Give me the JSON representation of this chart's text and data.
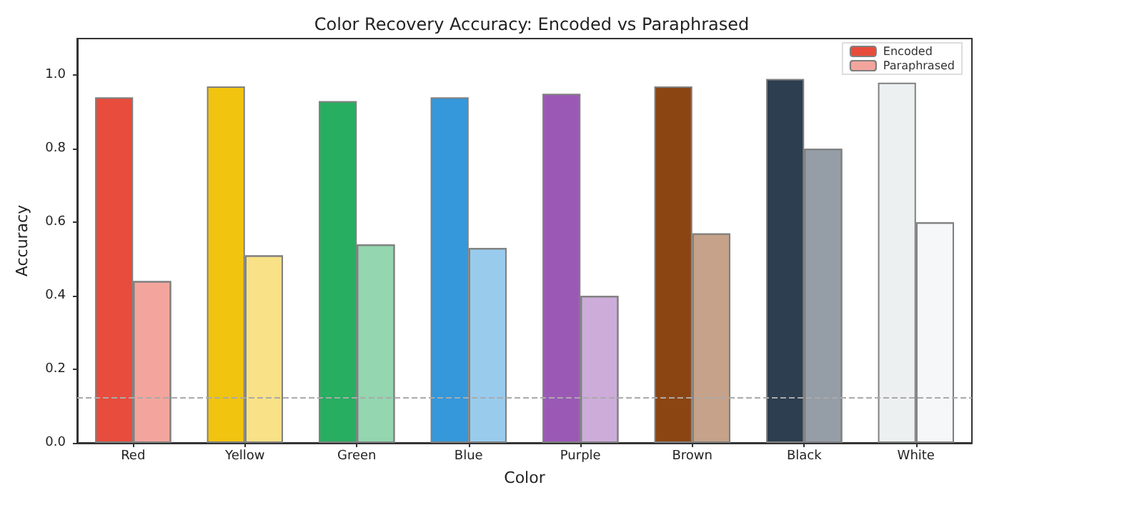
{
  "chart_data": {
    "type": "bar",
    "title": "Color Recovery Accuracy: Encoded vs Paraphrased",
    "xlabel": "Color",
    "ylabel": "Accuracy",
    "categories": [
      "Red",
      "Yellow",
      "Green",
      "Blue",
      "Purple",
      "Brown",
      "Black",
      "White"
    ],
    "series": [
      {
        "name": "Encoded",
        "color": "#e74c3c",
        "colors": [
          "#e74c3c",
          "#f1c40f",
          "#27ae60",
          "#3498db",
          "#9b59b6",
          "#8b4513",
          "#2c3e50",
          "#ecf0f1"
        ],
        "values": [
          0.94,
          0.97,
          0.93,
          0.94,
          0.95,
          0.97,
          0.99,
          0.98
        ]
      },
      {
        "name": "Paraphrased",
        "color": "#f3a59d",
        "colors": [
          "#f3a59d",
          "#f8e187",
          "#93d6af",
          "#99cbed",
          "#cdacda",
          "#c5a289",
          "#959ea7",
          "#f5f7f8"
        ],
        "values": [
          0.44,
          0.51,
          0.54,
          0.53,
          0.4,
          0.57,
          0.8,
          0.6
        ]
      }
    ],
    "ylim": [
      0,
      1.1
    ],
    "yticks": [
      {
        "value": 0,
        "label": "0.0"
      },
      {
        "value": 0.2,
        "label": "0.2"
      },
      {
        "value": 0.4,
        "label": "0.4"
      },
      {
        "value": 0.6,
        "label": "0.6"
      },
      {
        "value": 0.8,
        "label": "0.8"
      },
      {
        "value": 1,
        "label": "1.0"
      }
    ],
    "ref_lines": [
      {
        "axis": "y",
        "value": 0.125,
        "color": "#aaaaaa",
        "line_style": "dashed"
      }
    ],
    "grid": false,
    "legend": "top right"
  }
}
